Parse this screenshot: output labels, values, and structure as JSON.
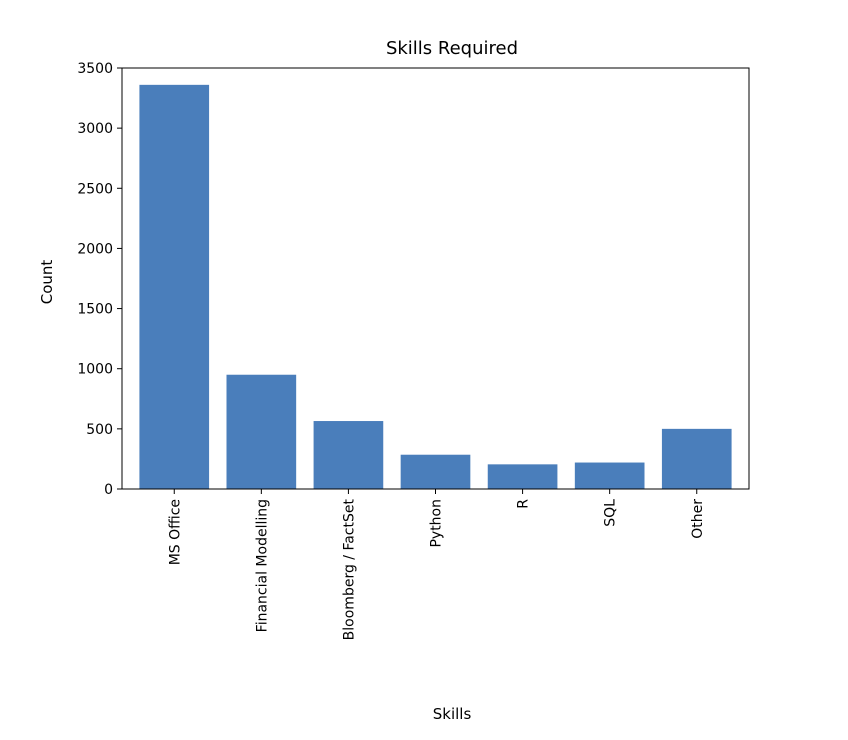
{
  "chart_data": {
    "type": "bar",
    "title": "Skills Required",
    "xlabel": "Skills",
    "ylabel": "Count",
    "categories": [
      "MS Office",
      "Financial Modelling",
      "Bloomberg / FactSet",
      "Python",
      "R",
      "SQL",
      "Other"
    ],
    "values": [
      3360,
      950,
      565,
      285,
      205,
      220,
      500
    ],
    "ylim": [
      0,
      3500
    ],
    "yticks": [
      "0",
      "500",
      "1000",
      "1500",
      "2000",
      "2500",
      "3000",
      "3500"
    ],
    "grid": false,
    "bar_color": "#4a7ebb"
  }
}
